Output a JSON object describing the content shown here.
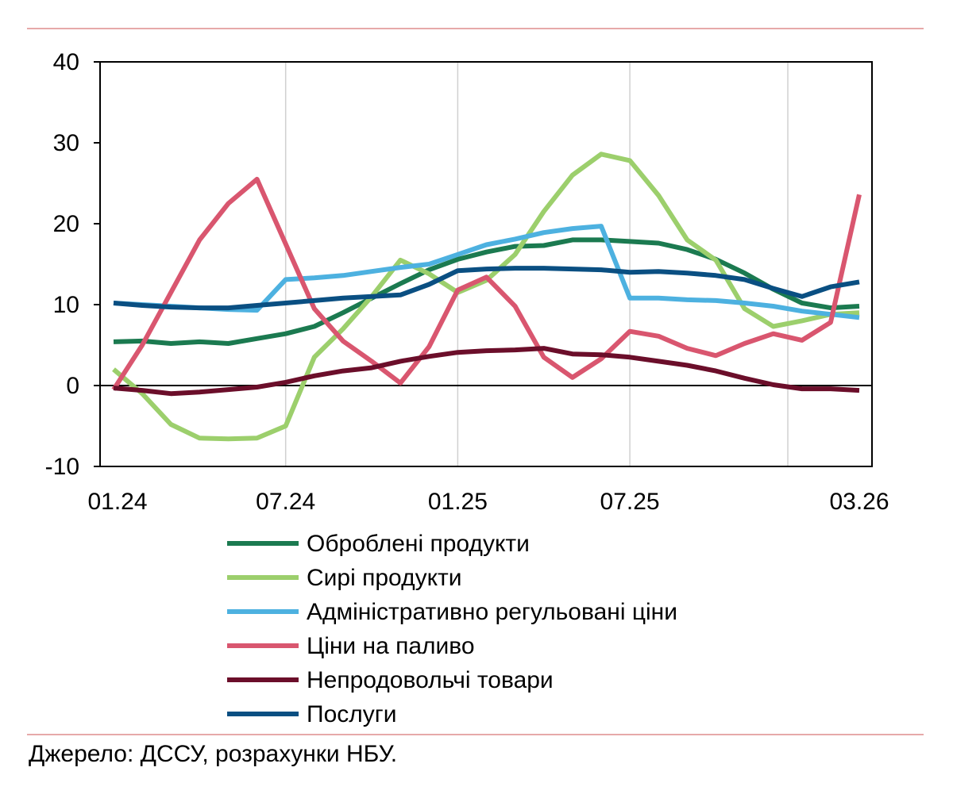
{
  "chart_data": {
    "type": "line",
    "title": "",
    "xlabel": "",
    "ylabel": "",
    "ylim": [
      -10,
      40
    ],
    "yticks": [
      -10,
      0,
      10,
      20,
      30,
      40
    ],
    "xtick_labels": [
      "01.24",
      "07.24",
      "01.25",
      "07.25",
      "03.26"
    ],
    "xtick_indices": [
      0,
      6,
      12,
      18,
      26
    ],
    "x": [
      "01.24",
      "02.24",
      "03.24",
      "04.24",
      "05.24",
      "06.24",
      "07.24",
      "08.24",
      "09.24",
      "10.24",
      "11.24",
      "12.24",
      "01.25",
      "02.25",
      "03.25",
      "04.25",
      "05.25",
      "06.25",
      "07.25",
      "08.25",
      "09.25",
      "10.25",
      "11.25",
      "12.25",
      "01.26",
      "02.26",
      "03.26"
    ],
    "grid": "vertical",
    "legend_position": "bottom",
    "series": [
      {
        "name": "Оброблені продукти",
        "color": "#1b7a50",
        "values": [
          5.4,
          5.5,
          5.2,
          5.4,
          5.2,
          5.8,
          6.4,
          7.3,
          9.0,
          10.8,
          12.6,
          14.3,
          15.6,
          16.5,
          17.2,
          17.3,
          18.0,
          18.0,
          17.8,
          17.6,
          16.8,
          15.6,
          13.9,
          11.9,
          10.2,
          9.6,
          9.8
        ]
      },
      {
        "name": "Сирі продукти",
        "color": "#9ccf6c",
        "values": [
          2.0,
          -1.0,
          -4.8,
          -6.5,
          -6.6,
          -6.5,
          -5.0,
          3.5,
          7.0,
          11.0,
          15.5,
          13.8,
          11.5,
          13.0,
          16.2,
          21.5,
          26.0,
          28.6,
          27.8,
          23.5,
          18.0,
          15.5,
          9.5,
          7.3,
          8.0,
          8.8,
          9.0
        ]
      },
      {
        "name": "Адміністративно регульовані ціни",
        "color": "#4db1e0",
        "values": [
          10.2,
          10.0,
          9.8,
          9.6,
          9.4,
          9.3,
          13.1,
          13.3,
          13.6,
          14.1,
          14.6,
          15.0,
          16.2,
          17.4,
          18.1,
          18.9,
          19.4,
          19.7,
          10.8,
          10.8,
          10.6,
          10.5,
          10.2,
          9.8,
          9.2,
          8.8,
          8.4
        ]
      },
      {
        "name": "Ціни на паливо",
        "color": "#d9566f",
        "values": [
          -0.5,
          5.0,
          11.5,
          18.0,
          22.5,
          25.5,
          17.5,
          9.5,
          5.5,
          3.0,
          0.3,
          4.8,
          11.8,
          13.4,
          9.8,
          3.5,
          1.0,
          3.3,
          6.7,
          6.1,
          4.6,
          3.7,
          5.2,
          6.4,
          5.6,
          7.8,
          23.6
        ]
      },
      {
        "name": "Непродовольчі товари",
        "color": "#6b0e2a",
        "values": [
          -0.3,
          -0.6,
          -1.0,
          -0.8,
          -0.5,
          -0.2,
          0.4,
          1.2,
          1.8,
          2.2,
          3.0,
          3.6,
          4.1,
          4.3,
          4.4,
          4.6,
          3.9,
          3.8,
          3.5,
          3.0,
          2.5,
          1.8,
          0.9,
          0.1,
          -0.4,
          -0.4,
          -0.6
        ]
      },
      {
        "name": "Послуги",
        "color": "#0a4f82",
        "values": [
          10.2,
          9.9,
          9.7,
          9.6,
          9.6,
          9.9,
          10.2,
          10.5,
          10.8,
          11.0,
          11.2,
          12.5,
          14.2,
          14.4,
          14.5,
          14.5,
          14.4,
          14.3,
          14.0,
          14.1,
          13.9,
          13.6,
          13.1,
          12.0,
          11.0,
          12.2,
          12.8
        ]
      }
    ]
  },
  "source_note": "Джерело: ДССУ, розрахунки НБУ."
}
